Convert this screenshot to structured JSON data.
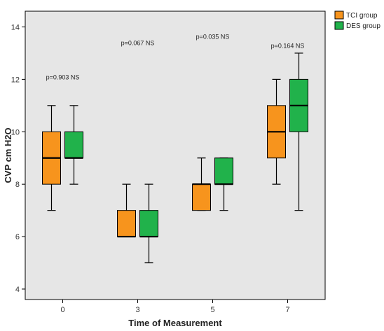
{
  "chart_data": {
    "type": "boxplot",
    "xlabel": "Time of Measurement",
    "ylabel": "CVP cm H2O",
    "ylim": [
      3.6,
      14.6
    ],
    "yticks": [
      4,
      6,
      8,
      10,
      12,
      14
    ],
    "categories": [
      "0",
      "3",
      "5",
      "7"
    ],
    "series": [
      {
        "name": "TCI group",
        "color": "#f7941d",
        "boxes": [
          {
            "min": 7,
            "q1": 8,
            "median": 9,
            "q3": 10,
            "max": 11
          },
          {
            "min": 6,
            "q1": 6,
            "median": 6,
            "q3": 7,
            "max": 8
          },
          {
            "min": 7,
            "q1": 7,
            "median": 8,
            "q3": 8,
            "max": 9
          },
          {
            "min": 8,
            "q1": 9,
            "median": 10,
            "q3": 11,
            "max": 12
          }
        ]
      },
      {
        "name": "DES group",
        "color": "#21b24b",
        "boxes": [
          {
            "min": 8,
            "q1": 9,
            "median": 9,
            "q3": 10,
            "max": 11
          },
          {
            "min": 5,
            "q1": 6,
            "median": 6,
            "q3": 7,
            "max": 8
          },
          {
            "min": 7,
            "q1": 8,
            "median": 8,
            "q3": 9,
            "max": 9
          },
          {
            "min": 7,
            "q1": 10,
            "median": 11,
            "q3": 12,
            "max": 13
          }
        ]
      }
    ],
    "annotations": [
      {
        "category": "0",
        "text": "p=0.903 NS",
        "y": 12
      },
      {
        "category": "3",
        "text": "p=0.067 NS",
        "y": 13.3
      },
      {
        "category": "5",
        "text": "p=0.035 NS",
        "y": 13.55
      },
      {
        "category": "7",
        "text": "p=0.164 NS",
        "y": 13.2
      }
    ],
    "legend_position": "right",
    "grid": false,
    "background": "#e6e6e6"
  }
}
